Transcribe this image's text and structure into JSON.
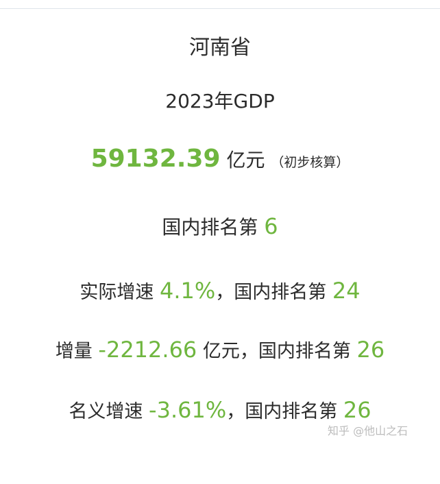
{
  "header": {
    "province": "河南省",
    "year_label": "2023年GDP"
  },
  "gdp": {
    "value": "59132.39",
    "unit": "亿元",
    "note": "（初步核算）"
  },
  "national_rank": {
    "label": "国内排名第",
    "value": "6"
  },
  "real_growth": {
    "label": "实际增速",
    "value": "4.1%",
    "rank_label": "，国内排名第",
    "rank_value": "24"
  },
  "increment": {
    "label": "增量",
    "value": "-2212.66",
    "unit_rank_label": "亿元，国内排名第",
    "rank_value": "26"
  },
  "nominal_growth": {
    "label": "名义增速",
    "value": "-3.61%",
    "rank_label": "，国内排名第",
    "rank_value": "26"
  },
  "watermark": "知乎 @他山之石",
  "colors": {
    "accent_green": "#6fb63f",
    "text": "#2b2b2b",
    "watermark": "#bcbcbc"
  }
}
